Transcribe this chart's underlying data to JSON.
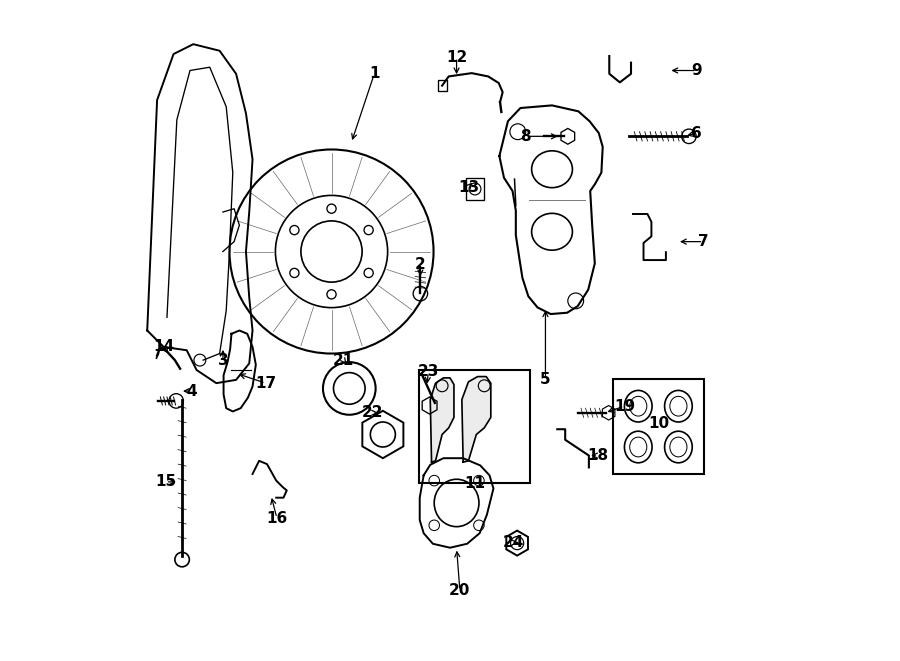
{
  "bg_color": "#ffffff",
  "line_color": "#000000",
  "label_fontsize": 11,
  "labels_info": [
    [
      1,
      0.385,
      0.89,
      0.35,
      0.785
    ],
    [
      2,
      0.455,
      0.6,
      0.455,
      0.578
    ],
    [
      3,
      0.155,
      0.455,
      0.155,
      0.475
    ],
    [
      4,
      0.108,
      0.408,
      0.09,
      0.408
    ],
    [
      5,
      0.645,
      0.425,
      0.645,
      0.535
    ],
    [
      6,
      0.875,
      0.8,
      0.856,
      0.795
    ],
    [
      7,
      0.885,
      0.635,
      0.845,
      0.635
    ],
    [
      8,
      0.615,
      0.795,
      0.668,
      0.795
    ],
    [
      9,
      0.875,
      0.895,
      0.832,
      0.895
    ],
    [
      10,
      0.817,
      0.358,
      null,
      null
    ],
    [
      11,
      0.538,
      0.268,
      null,
      null
    ],
    [
      12,
      0.51,
      0.915,
      0.51,
      0.885
    ],
    [
      13,
      0.528,
      0.718,
      0.537,
      0.728
    ],
    [
      14,
      0.065,
      0.475,
      0.075,
      0.462
    ],
    [
      15,
      0.068,
      0.27,
      0.088,
      0.27
    ],
    [
      16,
      0.237,
      0.215,
      0.228,
      0.25
    ],
    [
      17,
      0.22,
      0.42,
      0.175,
      0.435
    ],
    [
      18,
      0.725,
      0.31,
      0.71,
      0.31
    ],
    [
      19,
      0.765,
      0.385,
      0.735,
      0.375
    ],
    [
      20,
      0.515,
      0.105,
      0.51,
      0.17
    ],
    [
      21,
      0.338,
      0.455,
      0.345,
      0.445
    ],
    [
      22,
      0.382,
      0.375,
      0.395,
      0.375
    ],
    [
      23,
      0.467,
      0.437,
      0.465,
      0.415
    ],
    [
      24,
      0.597,
      0.178,
      0.608,
      0.178
    ]
  ]
}
